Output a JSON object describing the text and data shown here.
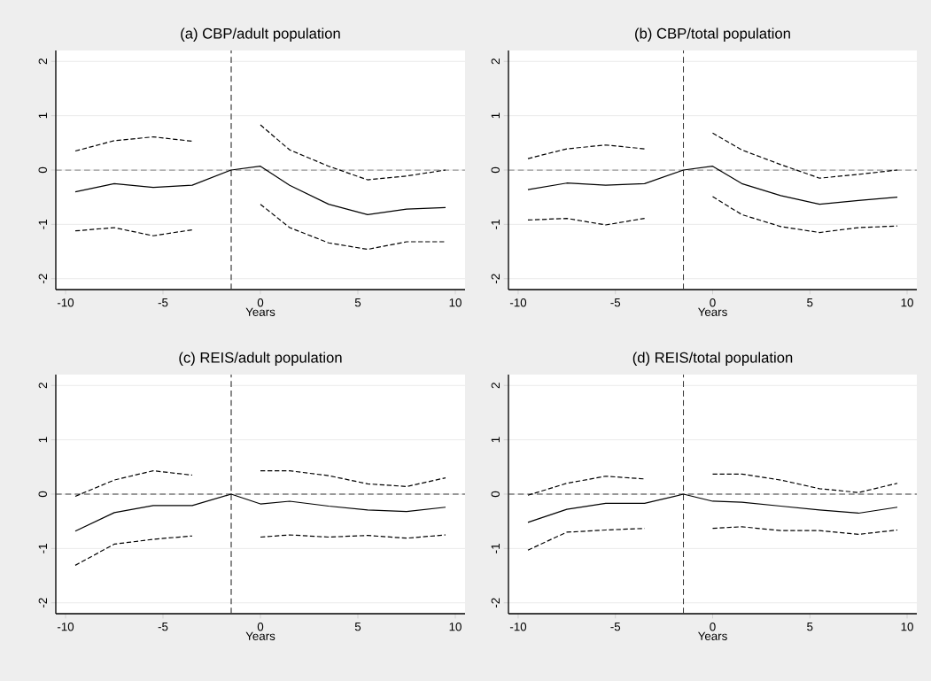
{
  "chart_data": [
    {
      "type": "line",
      "title": "(a) CBP/adult population",
      "xlabel": "Years",
      "x": [
        -9.5,
        -7.5,
        -5.5,
        -3.5,
        -1.5,
        0,
        1.5,
        3.5,
        5.5,
        7.5,
        9.5
      ],
      "series": [
        {
          "color": "#000000",
          "line_style": "solid",
          "values": [
            -0.4,
            -0.25,
            -0.32,
            -0.28,
            0,
            0.07,
            -0.28,
            -0.63,
            -0.82,
            -0.72,
            -0.69
          ]
        },
        {
          "color": "#000000",
          "line_style": "dashed",
          "values": [
            0.35,
            0.54,
            0.61,
            0.53,
            null,
            0.83,
            0.37,
            0.07,
            -0.18,
            -0.11,
            0
          ]
        },
        {
          "color": "#000000",
          "line_style": "dashed",
          "values": [
            -1.12,
            -1.06,
            -1.21,
            -1.1,
            null,
            -0.63,
            -1.06,
            -1.34,
            -1.46,
            -1.32,
            -1.32
          ]
        }
      ],
      "xlim": [
        -10.5,
        10.5
      ],
      "ylim": [
        -2.2,
        2.2
      ],
      "xticks": [
        -10,
        -5,
        0,
        5,
        10
      ],
      "yticks": [
        -2,
        -1,
        0,
        1,
        2
      ],
      "grid": "y",
      "ref_lines": [
        {
          "axis": "y",
          "value": 0,
          "line_style": "dashed"
        },
        {
          "axis": "x",
          "value": -1.5,
          "line_style": "dashed"
        }
      ]
    },
    {
      "type": "line",
      "title": "(b) CBP/total population",
      "xlabel": "Years",
      "x": [
        -9.5,
        -7.5,
        -5.5,
        -3.5,
        -1.5,
        0,
        1.5,
        3.5,
        5.5,
        7.5,
        9.5
      ],
      "series": [
        {
          "color": "#000000",
          "line_style": "solid",
          "values": [
            -0.36,
            -0.24,
            -0.28,
            -0.25,
            0,
            0.07,
            -0.25,
            -0.47,
            -0.63,
            -0.56,
            -0.5
          ]
        },
        {
          "color": "#000000",
          "line_style": "dashed",
          "values": [
            0.21,
            0.39,
            0.46,
            0.39,
            null,
            0.68,
            0.37,
            0.1,
            -0.15,
            -0.08,
            0
          ]
        },
        {
          "color": "#000000",
          "line_style": "dashed",
          "values": [
            -0.92,
            -0.89,
            -1.01,
            -0.89,
            null,
            -0.49,
            -0.82,
            -1.04,
            -1.15,
            -1.06,
            -1.03
          ]
        }
      ],
      "xlim": [
        -10.5,
        10.5
      ],
      "ylim": [
        -2.2,
        2.2
      ],
      "xticks": [
        -10,
        -5,
        0,
        5,
        10
      ],
      "yticks": [
        -2,
        -1,
        0,
        1,
        2
      ],
      "grid": "y",
      "ref_lines": [
        {
          "axis": "y",
          "value": 0,
          "line_style": "dashed"
        },
        {
          "axis": "x",
          "value": -1.5,
          "line_style": "dashed"
        }
      ]
    },
    {
      "type": "line",
      "title": "(c) REIS/adult population",
      "xlabel": "Years",
      "x": [
        -9.5,
        -7.5,
        -5.5,
        -3.5,
        -1.5,
        0,
        1.5,
        3.5,
        5.5,
        7.5,
        9.5
      ],
      "series": [
        {
          "color": "#000000",
          "line_style": "solid",
          "values": [
            -0.68,
            -0.34,
            -0.21,
            -0.21,
            0,
            -0.18,
            -0.13,
            -0.22,
            -0.29,
            -0.32,
            -0.24
          ]
        },
        {
          "color": "#000000",
          "line_style": "dashed",
          "values": [
            -0.04,
            0.26,
            0.43,
            0.35,
            null,
            0.43,
            0.43,
            0.34,
            0.19,
            0.14,
            0.3
          ]
        },
        {
          "color": "#000000",
          "line_style": "dashed",
          "values": [
            -1.31,
            -0.92,
            -0.83,
            -0.77,
            null,
            -0.79,
            -0.75,
            -0.79,
            -0.76,
            -0.81,
            -0.75
          ]
        }
      ],
      "xlim": [
        -10.5,
        10.5
      ],
      "ylim": [
        -2.2,
        2.2
      ],
      "xticks": [
        -10,
        -5,
        0,
        5,
        10
      ],
      "yticks": [
        -2,
        -1,
        0,
        1,
        2
      ],
      "grid": "y",
      "ref_lines": [
        {
          "axis": "y",
          "value": 0,
          "line_style": "dashed"
        },
        {
          "axis": "x",
          "value": -1.5,
          "line_style": "dashed"
        }
      ]
    },
    {
      "type": "line",
      "title": "(d) REIS/total population",
      "xlabel": "Years",
      "x": [
        -9.5,
        -7.5,
        -5.5,
        -3.5,
        -1.5,
        0,
        1.5,
        3.5,
        5.5,
        7.5,
        9.5
      ],
      "series": [
        {
          "color": "#000000",
          "line_style": "solid",
          "values": [
            -0.52,
            -0.28,
            -0.17,
            -0.17,
            0,
            -0.13,
            -0.15,
            -0.22,
            -0.29,
            -0.35,
            -0.24
          ]
        },
        {
          "color": "#000000",
          "line_style": "dashed",
          "values": [
            -0.02,
            0.2,
            0.33,
            0.28,
            null,
            0.37,
            0.37,
            0.26,
            0.1,
            0.03,
            0.2
          ]
        },
        {
          "color": "#000000",
          "line_style": "dashed",
          "values": [
            -1.03,
            -0.7,
            -0.66,
            -0.63,
            null,
            -0.63,
            -0.6,
            -0.67,
            -0.67,
            -0.74,
            -0.66
          ]
        }
      ],
      "xlim": [
        -10.5,
        10.5
      ],
      "ylim": [
        -2.2,
        2.2
      ],
      "xticks": [
        -10,
        -5,
        0,
        5,
        10
      ],
      "yticks": [
        -2,
        -1,
        0,
        1,
        2
      ],
      "grid": "y",
      "ref_lines": [
        {
          "axis": "y",
          "value": 0,
          "line_style": "dashed"
        },
        {
          "axis": "x",
          "value": -1.5,
          "line_style": "dashed"
        }
      ]
    }
  ]
}
